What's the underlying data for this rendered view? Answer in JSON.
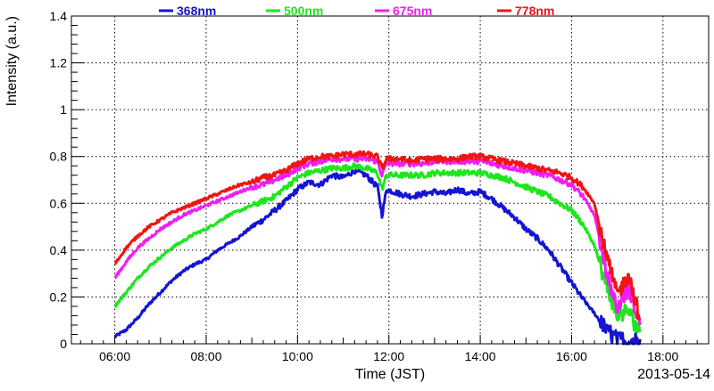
{
  "chart_data": {
    "type": "line",
    "title": "",
    "xlabel": "Time (JST)",
    "ylabel": "Intensity (a.u.)",
    "date_label": "2013-05-14",
    "x_unit": "hours",
    "xlim": [
      5.05,
      19.0
    ],
    "ylim": [
      0,
      1.4
    ],
    "grid": true,
    "legend_position": "top",
    "x_ticks": [
      {
        "value": 6,
        "label": "06:00"
      },
      {
        "value": 8,
        "label": "08:00"
      },
      {
        "value": 10,
        "label": "10:00"
      },
      {
        "value": 12,
        "label": "12:00"
      },
      {
        "value": 14,
        "label": "14:00"
      },
      {
        "value": 16,
        "label": "16:00"
      },
      {
        "value": 18,
        "label": "18:00"
      }
    ],
    "y_ticks": [
      {
        "value": 0,
        "label": "0"
      },
      {
        "value": 0.2,
        "label": "0.2"
      },
      {
        "value": 0.4,
        "label": "0.4"
      },
      {
        "value": 0.6,
        "label": "0.6"
      },
      {
        "value": 0.8,
        "label": "0.8"
      },
      {
        "value": 1.0,
        "label": "1"
      },
      {
        "value": 1.2,
        "label": "1.2"
      },
      {
        "value": 1.4,
        "label": "1.4"
      }
    ],
    "series": [
      {
        "name": "368nm",
        "color": "#1414d2",
        "points": [
          [
            6.0,
            0.03
          ],
          [
            6.25,
            0.06
          ],
          [
            6.5,
            0.11
          ],
          [
            6.75,
            0.17
          ],
          [
            7.0,
            0.22
          ],
          [
            7.25,
            0.27
          ],
          [
            7.5,
            0.31
          ],
          [
            7.75,
            0.34
          ],
          [
            8.0,
            0.36
          ],
          [
            8.25,
            0.4
          ],
          [
            8.5,
            0.43
          ],
          [
            8.75,
            0.46
          ],
          [
            9.0,
            0.5
          ],
          [
            9.25,
            0.53
          ],
          [
            9.5,
            0.57
          ],
          [
            9.75,
            0.61
          ],
          [
            10.0,
            0.66
          ],
          [
            10.25,
            0.69
          ],
          [
            10.5,
            0.68
          ],
          [
            10.75,
            0.72
          ],
          [
            11.0,
            0.71
          ],
          [
            11.25,
            0.74
          ],
          [
            11.5,
            0.72
          ],
          [
            11.75,
            0.67
          ],
          [
            11.85,
            0.55
          ],
          [
            11.95,
            0.66
          ],
          [
            12.25,
            0.64
          ],
          [
            12.5,
            0.63
          ],
          [
            12.75,
            0.64
          ],
          [
            13.0,
            0.65
          ],
          [
            13.25,
            0.64
          ],
          [
            13.5,
            0.66
          ],
          [
            13.75,
            0.64
          ],
          [
            14.0,
            0.65
          ],
          [
            14.25,
            0.62
          ],
          [
            14.5,
            0.58
          ],
          [
            14.75,
            0.54
          ],
          [
            15.0,
            0.49
          ],
          [
            15.25,
            0.45
          ],
          [
            15.5,
            0.4
          ],
          [
            15.75,
            0.33
          ],
          [
            16.0,
            0.26
          ],
          [
            16.25,
            0.19
          ],
          [
            16.5,
            0.13
          ],
          [
            16.75,
            0.06
          ],
          [
            17.0,
            0.02
          ],
          [
            17.25,
            0.01
          ],
          [
            17.5,
            0.02
          ]
        ]
      },
      {
        "name": "500nm",
        "color": "#1ee61e",
        "points": [
          [
            6.0,
            0.16
          ],
          [
            6.25,
            0.22
          ],
          [
            6.5,
            0.28
          ],
          [
            6.75,
            0.33
          ],
          [
            7.0,
            0.37
          ],
          [
            7.25,
            0.41
          ],
          [
            7.5,
            0.44
          ],
          [
            7.75,
            0.47
          ],
          [
            8.0,
            0.49
          ],
          [
            8.25,
            0.52
          ],
          [
            8.5,
            0.55
          ],
          [
            8.75,
            0.57
          ],
          [
            9.0,
            0.59
          ],
          [
            9.25,
            0.61
          ],
          [
            9.5,
            0.63
          ],
          [
            9.75,
            0.67
          ],
          [
            10.0,
            0.71
          ],
          [
            10.25,
            0.73
          ],
          [
            10.5,
            0.74
          ],
          [
            10.75,
            0.75
          ],
          [
            11.0,
            0.75
          ],
          [
            11.25,
            0.76
          ],
          [
            11.5,
            0.75
          ],
          [
            11.75,
            0.73
          ],
          [
            11.85,
            0.66
          ],
          [
            11.95,
            0.72
          ],
          [
            12.25,
            0.72
          ],
          [
            12.5,
            0.72
          ],
          [
            12.75,
            0.72
          ],
          [
            13.0,
            0.73
          ],
          [
            13.25,
            0.73
          ],
          [
            13.5,
            0.73
          ],
          [
            13.75,
            0.73
          ],
          [
            14.0,
            0.73
          ],
          [
            14.25,
            0.72
          ],
          [
            14.5,
            0.71
          ],
          [
            14.75,
            0.69
          ],
          [
            15.0,
            0.67
          ],
          [
            15.25,
            0.65
          ],
          [
            15.5,
            0.63
          ],
          [
            15.75,
            0.6
          ],
          [
            16.0,
            0.57
          ],
          [
            16.25,
            0.51
          ],
          [
            16.5,
            0.42
          ],
          [
            16.75,
            0.25
          ],
          [
            17.0,
            0.12
          ],
          [
            17.25,
            0.14
          ],
          [
            17.5,
            0.05
          ]
        ]
      },
      {
        "name": "675nm",
        "color": "#f01ef0",
        "points": [
          [
            6.0,
            0.28
          ],
          [
            6.25,
            0.35
          ],
          [
            6.5,
            0.41
          ],
          [
            6.75,
            0.45
          ],
          [
            7.0,
            0.49
          ],
          [
            7.25,
            0.52
          ],
          [
            7.5,
            0.55
          ],
          [
            7.75,
            0.57
          ],
          [
            8.0,
            0.59
          ],
          [
            8.25,
            0.61
          ],
          [
            8.5,
            0.63
          ],
          [
            8.75,
            0.65
          ],
          [
            9.0,
            0.67
          ],
          [
            9.25,
            0.68
          ],
          [
            9.5,
            0.7
          ],
          [
            9.75,
            0.72
          ],
          [
            10.0,
            0.75
          ],
          [
            10.25,
            0.77
          ],
          [
            10.5,
            0.78
          ],
          [
            10.75,
            0.79
          ],
          [
            11.0,
            0.79
          ],
          [
            11.25,
            0.79
          ],
          [
            11.5,
            0.79
          ],
          [
            11.75,
            0.78
          ],
          [
            11.85,
            0.72
          ],
          [
            11.95,
            0.77
          ],
          [
            12.25,
            0.77
          ],
          [
            12.5,
            0.77
          ],
          [
            12.75,
            0.77
          ],
          [
            13.0,
            0.78
          ],
          [
            13.25,
            0.78
          ],
          [
            13.5,
            0.78
          ],
          [
            13.75,
            0.78
          ],
          [
            14.0,
            0.78
          ],
          [
            14.25,
            0.77
          ],
          [
            14.5,
            0.76
          ],
          [
            14.75,
            0.75
          ],
          [
            15.0,
            0.74
          ],
          [
            15.25,
            0.73
          ],
          [
            15.5,
            0.72
          ],
          [
            15.75,
            0.7
          ],
          [
            16.0,
            0.68
          ],
          [
            16.25,
            0.63
          ],
          [
            16.5,
            0.55
          ],
          [
            16.75,
            0.32
          ],
          [
            17.0,
            0.15
          ],
          [
            17.25,
            0.24
          ],
          [
            17.5,
            0.08
          ]
        ]
      },
      {
        "name": "778nm",
        "color": "#f01414",
        "points": [
          [
            6.0,
            0.34
          ],
          [
            6.25,
            0.41
          ],
          [
            6.5,
            0.46
          ],
          [
            6.75,
            0.5
          ],
          [
            7.0,
            0.53
          ],
          [
            7.25,
            0.56
          ],
          [
            7.5,
            0.58
          ],
          [
            7.75,
            0.6
          ],
          [
            8.0,
            0.62
          ],
          [
            8.25,
            0.64
          ],
          [
            8.5,
            0.66
          ],
          [
            8.75,
            0.68
          ],
          [
            9.0,
            0.69
          ],
          [
            9.25,
            0.71
          ],
          [
            9.5,
            0.72
          ],
          [
            9.75,
            0.74
          ],
          [
            10.0,
            0.77
          ],
          [
            10.25,
            0.79
          ],
          [
            10.5,
            0.8
          ],
          [
            10.75,
            0.8
          ],
          [
            11.0,
            0.81
          ],
          [
            11.25,
            0.81
          ],
          [
            11.5,
            0.81
          ],
          [
            11.75,
            0.8
          ],
          [
            11.85,
            0.75
          ],
          [
            11.95,
            0.79
          ],
          [
            12.25,
            0.79
          ],
          [
            12.5,
            0.78
          ],
          [
            12.75,
            0.79
          ],
          [
            13.0,
            0.79
          ],
          [
            13.25,
            0.79
          ],
          [
            13.5,
            0.79
          ],
          [
            13.75,
            0.8
          ],
          [
            14.0,
            0.8
          ],
          [
            14.25,
            0.79
          ],
          [
            14.5,
            0.78
          ],
          [
            14.75,
            0.77
          ],
          [
            15.0,
            0.76
          ],
          [
            15.25,
            0.75
          ],
          [
            15.5,
            0.74
          ],
          [
            15.75,
            0.73
          ],
          [
            16.0,
            0.71
          ],
          [
            16.25,
            0.67
          ],
          [
            16.5,
            0.6
          ],
          [
            16.75,
            0.38
          ],
          [
            17.0,
            0.21
          ],
          [
            17.25,
            0.3
          ],
          [
            17.5,
            0.1
          ]
        ]
      }
    ]
  }
}
